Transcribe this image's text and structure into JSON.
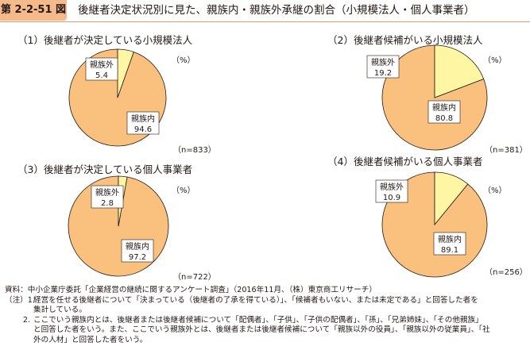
{
  "header": {
    "figure_number": "第 2-2-51 図",
    "title": "後継者決定状況別に見た、親族内・親族外承継の割合（小規模法人・個人事業者）"
  },
  "unit": "（%）",
  "chart_data": [
    {
      "type": "pie",
      "title": "（1）後継者が決定している小規模法人",
      "n": "（n=833）",
      "slices": [
        {
          "label": "親族内",
          "value": 94.6,
          "display": "94.6",
          "color": "#f9c07e"
        },
        {
          "label": "親族外",
          "value": 5.4,
          "display": "5.4",
          "color": "#fff6a3"
        }
      ]
    },
    {
      "type": "pie",
      "title": "（2）後継者候補がいる小規模法人",
      "n": "（n=381）",
      "slices": [
        {
          "label": "親族内",
          "value": 80.8,
          "display": "80.8",
          "color": "#f9c07e"
        },
        {
          "label": "親族外",
          "value": 19.2,
          "display": "19.2",
          "color": "#fff6a3"
        }
      ]
    },
    {
      "type": "pie",
      "title": "（3）後継者が決定している個人事業者",
      "n": "（n=722）",
      "slices": [
        {
          "label": "親族内",
          "value": 97.2,
          "display": "97.2",
          "color": "#f9c07e"
        },
        {
          "label": "親族外",
          "value": 2.8,
          "display": "2.8",
          "color": "#fff6a3"
        }
      ]
    },
    {
      "type": "pie",
      "title": "（4）後継者候補がいる個人事業者",
      "n": "（n=256）",
      "slices": [
        {
          "label": "親族内",
          "value": 89.1,
          "display": "89.1",
          "color": "#f9c07e"
        },
        {
          "label": "親族外",
          "value": 10.9,
          "display": "10.9",
          "color": "#fff6a3"
        }
      ]
    }
  ],
  "notes": {
    "source": "資料：中小企業庁委託「企業経営の継続に関するアンケート調査」（2016年11月、（株）東京商工リサーチ）",
    "note1_lead": "（注）1.",
    "note1_a": "経営を任せる後継者について「決まっている（後継者の了承を得ている）」、「候補者もいない、または未定である」と回答した者を",
    "note1_b": "集計している。",
    "note2_lead": "2.",
    "note2_a": "ここでいう親族内とは、後継者または後継者候補について「配偶者」、「子供」、「子供の配偶者」、「孫」、「兄弟姉妹」、「その他親族」",
    "note2_b": "と回答した者をいう。また、ここでいう親族外とは、後継者または後継者候補について「親族以外の役員」、「親族以外の従業員」、「社",
    "note2_c": "外の人材」と回答した者をいう。"
  }
}
